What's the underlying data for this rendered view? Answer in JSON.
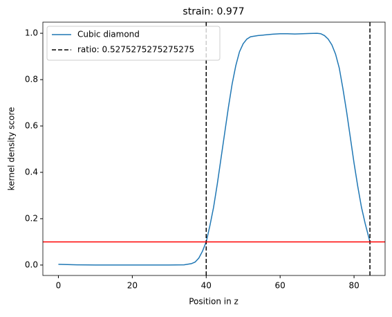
{
  "chart_data": {
    "type": "line",
    "title": "strain: 0.977",
    "x_label": "Position in z",
    "y_label": "kernel density score",
    "x": [
      0,
      5,
      10,
      15,
      20,
      25,
      30,
      34,
      36,
      37,
      38,
      39,
      40,
      41,
      42,
      43,
      44,
      45,
      46,
      47,
      48,
      49,
      50,
      51,
      52,
      54,
      56,
      58,
      60,
      62,
      64,
      66,
      68,
      70,
      71,
      72,
      73,
      74,
      75,
      76,
      77,
      78,
      79,
      80,
      81,
      82,
      83,
      84.3
    ],
    "series": [
      {
        "name": "Cubic diamond",
        "color": "#1f77b4",
        "values": [
          0.003,
          0.001,
          0.0,
          0.0,
          0.0,
          0.0,
          0.0,
          0.001,
          0.006,
          0.013,
          0.03,
          0.06,
          0.1,
          0.17,
          0.25,
          0.35,
          0.46,
          0.57,
          0.68,
          0.78,
          0.86,
          0.92,
          0.955,
          0.975,
          0.985,
          0.99,
          0.993,
          0.996,
          0.998,
          0.998,
          0.997,
          0.998,
          0.999,
          1.0,
          0.998,
          0.99,
          0.975,
          0.95,
          0.91,
          0.85,
          0.76,
          0.66,
          0.55,
          0.44,
          0.34,
          0.25,
          0.18,
          0.1
        ]
      }
    ],
    "vlines": {
      "name": "ratio: 0.5275275275275275",
      "color": "#000000",
      "values": [
        40,
        84.3
      ]
    },
    "hline": {
      "color": "#ff0000",
      "value": 0.1
    },
    "xlim": [
      -4.2,
      88.4
    ],
    "xticks": [
      0,
      20,
      40,
      60,
      80
    ],
    "ylim": [
      -0.045,
      1.048
    ],
    "yticks": [
      {
        "value": 0,
        "label": "0.0"
      },
      0.2,
      0.4,
      0.6,
      0.8,
      {
        "value": 1,
        "label": "1.0"
      }
    ],
    "legend": "upper-left"
  }
}
